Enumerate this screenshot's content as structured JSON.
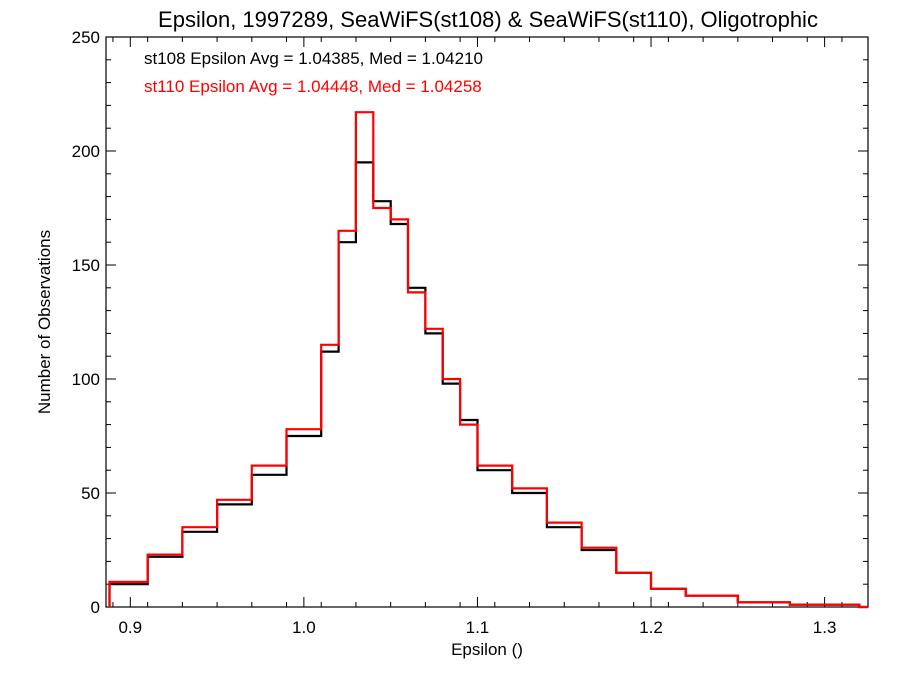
{
  "chart_data": {
    "type": "histogram",
    "title": "Epsilon, 1997289, SeaWiFS(st108) & SeaWiFS(st110), Oligotrophic",
    "xlabel": "Epsilon ()",
    "ylabel": "Number of Observations",
    "xlim": [
      0.886,
      1.325
    ],
    "ylim": [
      0,
      250
    ],
    "x_ticks": [
      "0.9",
      "1.0",
      "1.1",
      "1.2",
      "1.3"
    ],
    "y_ticks": [
      "0",
      "50",
      "100",
      "150",
      "200",
      "250"
    ],
    "grid": false,
    "stats": [
      {
        "text": "st108 Epsilon Avg = 1.04385, Med = 1.04210",
        "color": "#000000"
      },
      {
        "text": "st110 Epsilon Avg = 1.04448, Med = 1.04258",
        "color": "#ff0000"
      }
    ],
    "series": [
      {
        "color": "#000000",
        "x": [
          0.888,
          0.91,
          0.93,
          0.95,
          0.97,
          0.99,
          1.01,
          1.02,
          1.03,
          1.04,
          1.05,
          1.06,
          1.07,
          1.08,
          1.09,
          1.1,
          1.12,
          1.14,
          1.16,
          1.18,
          1.2,
          1.22,
          1.25,
          1.28,
          1.32
        ],
        "y": [
          10,
          22,
          33,
          45,
          58,
          75,
          112,
          160,
          195,
          178,
          168,
          140,
          120,
          98,
          82,
          60,
          50,
          35,
          25,
          15,
          8,
          5,
          2,
          1,
          0
        ]
      },
      {
        "color": "#ff0000",
        "x": [
          0.888,
          0.91,
          0.93,
          0.95,
          0.97,
          0.99,
          1.01,
          1.02,
          1.03,
          1.04,
          1.05,
          1.06,
          1.07,
          1.08,
          1.09,
          1.1,
          1.12,
          1.14,
          1.16,
          1.18,
          1.2,
          1.22,
          1.25,
          1.28,
          1.32
        ],
        "y": [
          11,
          23,
          35,
          47,
          62,
          78,
          115,
          165,
          217,
          175,
          170,
          138,
          122,
          100,
          80,
          62,
          52,
          37,
          26,
          15,
          8,
          5,
          2,
          1,
          0
        ]
      }
    ]
  }
}
